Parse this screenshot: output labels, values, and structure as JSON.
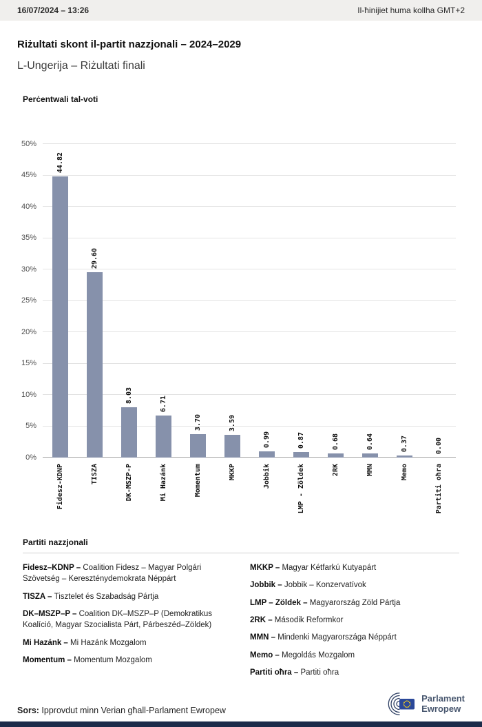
{
  "meta_bar": {
    "datetime": "16/07/2024 – 13:26",
    "timezone_note": "Il-ħinijiet huma kollha GMT+2"
  },
  "header": {
    "title": "Riżultati skont il-partit nazzjonali – 2024–2029",
    "subtitle": "L-Ungerija – Riżultati finali"
  },
  "chart_data": {
    "type": "bar",
    "title": "Perċentwali tal-voti",
    "categories": [
      "Fidesz-KDNP",
      "TISZA",
      "DK-MSZP-P",
      "Mi Hazánk",
      "Momentum",
      "MKKP",
      "Jobbik",
      "LMP - Zöldek",
      "2RK",
      "MMN",
      "Memo",
      "Partiti oħra"
    ],
    "values": [
      44.82,
      29.6,
      8.03,
      6.71,
      3.7,
      3.59,
      0.99,
      0.87,
      0.68,
      0.64,
      0.37,
      0.0
    ],
    "value_labels": [
      "44.82",
      "29.60",
      "8.03",
      "6.71",
      "3.70",
      "3.59",
      "0.99",
      "0.87",
      "0.68",
      "0.64",
      "0.37",
      "0.00"
    ],
    "xlabel": "",
    "ylabel": "",
    "ylim": [
      0,
      50
    ],
    "yticks": [
      0,
      5,
      10,
      15,
      20,
      25,
      30,
      35,
      40,
      45,
      50
    ],
    "ytick_suffix": "%",
    "grid": true,
    "legend_position": "none",
    "bar_color": "#8691ab"
  },
  "legend": {
    "heading": "Partiti nazzjonali",
    "left": [
      {
        "name": "Fidesz–KDNP –",
        "desc": "Coalition Fidesz – Magyar Polgári Szövetség – Kereszténydemokrata Néppárt"
      },
      {
        "name": "TISZA –",
        "desc": "Tisztelet és Szabadság Pártja"
      },
      {
        "name": "DK–MSZP–P –",
        "desc": "Coalition DK–MSZP–P (Demokratikus Koalíció, Magyar Szocialista Párt, Párbeszéd–Zöldek)"
      },
      {
        "name": "Mi Hazánk –",
        "desc": "Mi Hazánk Mozgalom"
      },
      {
        "name": "Momentum –",
        "desc": "Momentum Mozgalom"
      }
    ],
    "right": [
      {
        "name": "MKKP –",
        "desc": "Magyar Kétfarkú Kutyapárt"
      },
      {
        "name": "Jobbik –",
        "desc": "Jobbik – Konzervatívok"
      },
      {
        "name": "LMP – Zöldek –",
        "desc": "Magyarország Zöld Pártja"
      },
      {
        "name": "2RK –",
        "desc": "Második Reformkor"
      },
      {
        "name": "MMN –",
        "desc": "Mindenki Magyarországa Néppárt"
      },
      {
        "name": "Memo –",
        "desc": "Megoldás Mozgalom"
      },
      {
        "name": "Partiti oħra –",
        "desc": "Partiti oħra"
      }
    ]
  },
  "footer": {
    "source_label": "Sors:",
    "source_text": " Ipprovdut minn Verian għall-Parlament Ewropew",
    "logo_text_line1": "Parlament",
    "logo_text_line2": "Ewropew"
  },
  "colors": {
    "topbar_bg": "#f0efed",
    "bar": "#8691ab",
    "gridline": "#e3e3e3",
    "bottom_bar": "#1c2b4a",
    "eu_flag_blue": "#2a4899",
    "eu_star_gold": "#ffd617"
  }
}
